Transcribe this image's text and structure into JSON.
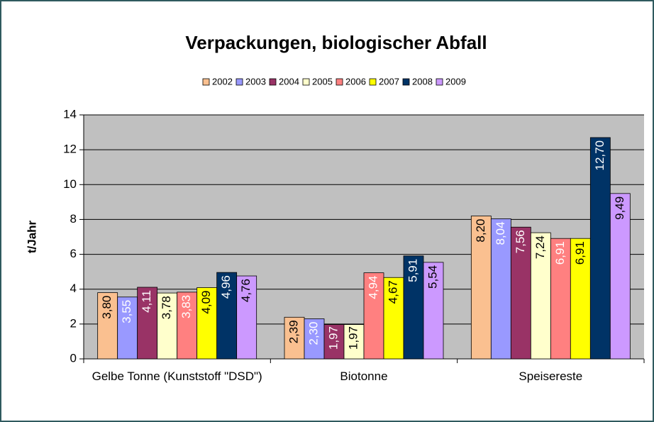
{
  "chart_data": {
    "type": "bar",
    "title": "Verpackungen, biologischer Abfall",
    "ylabel": "t/Jahr",
    "categories": [
      "Gelbe Tonne (Kunststoff \"DSD\")",
      "Biotonne",
      "Speisereste"
    ],
    "ylim": [
      0,
      14
    ],
    "yticks": [
      0,
      2,
      4,
      6,
      8,
      10,
      12,
      14
    ],
    "grid": true,
    "legend": "top",
    "series": [
      {
        "name": "2002",
        "color": "#fac090",
        "label_color": "#000000",
        "values": [
          3.8,
          2.39,
          8.2
        ],
        "value_labels": [
          "3,80",
          "2,39",
          "8,20"
        ]
      },
      {
        "name": "2003",
        "color": "#9999ff",
        "label_color": "#ffffff",
        "values": [
          3.55,
          2.3,
          8.04
        ],
        "value_labels": [
          "3,55",
          "2,30",
          "8,04"
        ]
      },
      {
        "name": "2004",
        "color": "#993366",
        "label_color": "#ffffff",
        "values": [
          4.11,
          1.97,
          7.56
        ],
        "value_labels": [
          "4,11",
          "1,97",
          "7,56"
        ]
      },
      {
        "name": "2005",
        "color": "#ffffcc",
        "label_color": "#000000",
        "values": [
          3.78,
          1.97,
          7.24
        ],
        "value_labels": [
          "3,78",
          "1,97",
          "7,24"
        ]
      },
      {
        "name": "2006",
        "color": "#ff8080",
        "label_color": "#ffffff",
        "values": [
          3.83,
          4.94,
          6.91
        ],
        "value_labels": [
          "3,83",
          "4,94",
          "6,91"
        ]
      },
      {
        "name": "2007",
        "color": "#ffff00",
        "label_color": "#000000",
        "values": [
          4.09,
          4.67,
          6.91
        ],
        "value_labels": [
          "4,09",
          "4,67",
          "6,91"
        ]
      },
      {
        "name": "2008",
        "color": "#003366",
        "label_color": "#ffffff",
        "values": [
          4.96,
          5.91,
          12.7
        ],
        "value_labels": [
          "4,96",
          "5,91",
          "12,70"
        ]
      },
      {
        "name": "2009",
        "color": "#cc99ff",
        "label_color": "#000000",
        "values": [
          4.76,
          5.54,
          9.49
        ],
        "value_labels": [
          "4,76",
          "5,54",
          "9,49"
        ]
      }
    ]
  }
}
